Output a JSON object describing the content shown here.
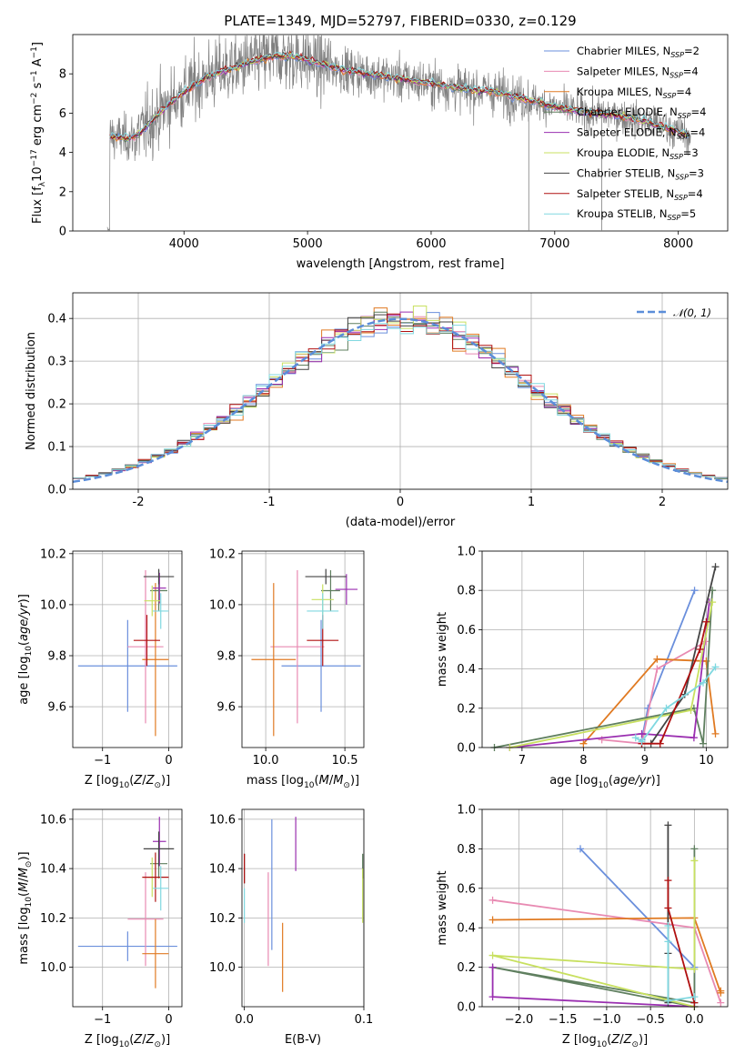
{
  "title": "PLATE=1349, MJD=52797, FIBERID=0330, z=0.129",
  "colors": {
    "Chabrier MILES": "#6a8fdc",
    "Salpeter MILES": "#e88ab2",
    "Kroupa MILES": "#e07a22",
    "Chabrier ELODIE": "#5f7f5f",
    "Salpeter ELODIE": "#9a2fb0",
    "Kroupa ELODIE": "#c8e060",
    "Chabrier STELIB": "#444444",
    "Salpeter STELIB": "#b01010",
    "Kroupa STELIB": "#80d8e0"
  },
  "chart_data": [
    {
      "id": "spectrum",
      "type": "line",
      "xlabel": "wavelength [Angstrom, rest frame]",
      "ylabel": "Flux [f_λ10^-17 erg cm^-2 s^-1 A^-1]",
      "xlim": [
        3100,
        8400
      ],
      "ylim": [
        0,
        10
      ],
      "xticks": [
        4000,
        5000,
        6000,
        7000,
        8000
      ],
      "yticks": [
        0,
        2,
        4,
        6,
        8
      ],
      "grid": false,
      "legend_position": "top-right",
      "data_color": "#808080",
      "continuum": {
        "x": [
          3380,
          3450,
          3550,
          3650,
          3750,
          3850,
          3950,
          4050,
          4150,
          4250,
          4350,
          4450,
          4550,
          4650,
          4750,
          4850,
          4950,
          5100,
          5300,
          5500,
          5700,
          5900,
          6100,
          6300,
          6500,
          6700,
          6900,
          7100,
          7300,
          7500,
          7700,
          7900,
          8100
        ],
        "y": [
          4.8,
          4.8,
          4.7,
          5.0,
          5.7,
          6.3,
          6.8,
          7.3,
          7.7,
          8.0,
          8.2,
          8.4,
          8.6,
          8.8,
          8.9,
          8.9,
          8.8,
          8.5,
          8.2,
          8.0,
          7.8,
          7.6,
          7.4,
          7.2,
          7.1,
          6.8,
          6.5,
          6.2,
          6.0,
          5.9,
          5.6,
          5.3,
          4.8
        ]
      },
      "legend": [
        {
          "prefix": "Chabrier MILES, N",
          "sub": "SSP",
          "suffix": "=2"
        },
        {
          "prefix": "Salpeter MILES, N",
          "sub": "SSP",
          "suffix": "=4"
        },
        {
          "prefix": "Kroupa MILES, N",
          "sub": "SSP",
          "suffix": "=4"
        },
        {
          "prefix": "Chabrier ELODIE, N",
          "sub": "SSP",
          "suffix": "=4"
        },
        {
          "prefix": "Salpeter ELODIE, N",
          "sub": "SSP",
          "suffix": "=4"
        },
        {
          "prefix": "Kroupa ELODIE, N",
          "sub": "SSP",
          "suffix": "=3"
        },
        {
          "prefix": "Chabrier STELIB, N",
          "sub": "SSP",
          "suffix": "=3"
        },
        {
          "prefix": "Salpeter STELIB, N",
          "sub": "SSP",
          "suffix": "=4"
        },
        {
          "prefix": "Kroupa STELIB, N",
          "sub": "SSP",
          "suffix": "=5"
        }
      ]
    },
    {
      "id": "residuals",
      "type": "line",
      "xlabel": "(data-model)/error",
      "ylabel": "Normed distribution",
      "xlim": [
        -2.5,
        2.5
      ],
      "ylim": [
        0,
        0.46
      ],
      "xticks": [
        -2,
        -1,
        0,
        1,
        2
      ],
      "yticks": [
        0.0,
        0.1,
        0.2,
        0.3,
        0.4
      ],
      "grid": true,
      "legend_position": "top-right",
      "gaussian_label": "𝒩(0, 1)",
      "gaussian_color": "#5b8dd9",
      "bin_width": 0.1
    },
    {
      "id": "age_vs_Z",
      "type": "scatter",
      "xlabel": "Z [log10(Z/Z⊙)]",
      "ylabel": "age  [log10(age/yr)]",
      "xlim": [
        -1.45,
        0.2
      ],
      "ylim": [
        9.44,
        10.21
      ],
      "xticks": [
        -1,
        0
      ],
      "yticks": [
        9.6,
        9.8,
        10.0,
        10.2
      ],
      "grid": true,
      "points": [
        {
          "m": "Chabrier MILES",
          "x": -0.62,
          "xe": 0.75,
          "y": 9.76,
          "ye": 0.18
        },
        {
          "m": "Salpeter MILES",
          "x": -0.35,
          "xe": 0.27,
          "y": 9.835,
          "ye": 0.3
        },
        {
          "m": "Kroupa MILES",
          "x": -0.2,
          "xe": 0.2,
          "y": 9.785,
          "ye": 0.3
        },
        {
          "m": "Chabrier ELODIE",
          "x": -0.15,
          "xe": 0.13,
          "y": 10.055,
          "ye": 0.08
        },
        {
          "m": "Salpeter ELODIE",
          "x": -0.14,
          "xe": 0.1,
          "y": 10.065,
          "ye": 0.06
        },
        {
          "m": "Kroupa ELODIE",
          "x": -0.25,
          "xe": 0.12,
          "y": 10.015,
          "ye": 0.06
        },
        {
          "m": "Chabrier STELIB",
          "x": -0.15,
          "xe": 0.23,
          "y": 10.11,
          "ye": 0.03
        },
        {
          "m": "Salpeter STELIB",
          "x": -0.33,
          "xe": 0.2,
          "y": 9.86,
          "ye": 0.1
        },
        {
          "m": "Kroupa STELIB",
          "x": -0.12,
          "xe": 0.12,
          "y": 9.975,
          "ye": 0.07
        }
      ]
    },
    {
      "id": "age_vs_mass",
      "type": "scatter",
      "xlabel": "mass [log10(M/M⊙)]",
      "ylabel": "",
      "xlim": [
        9.85,
        10.62
      ],
      "ylim": [
        9.44,
        10.21
      ],
      "xticks": [
        10.0,
        10.5
      ],
      "yticks": [
        9.6,
        9.8,
        10.0,
        10.2
      ],
      "grid": true,
      "points": [
        {
          "m": "Chabrier MILES",
          "x": 10.35,
          "xe": 0.25,
          "y": 9.76,
          "ye": 0.18
        },
        {
          "m": "Salpeter MILES",
          "x": 10.2,
          "xe": 0.17,
          "y": 9.835,
          "ye": 0.3
        },
        {
          "m": "Kroupa MILES",
          "x": 10.05,
          "xe": 0.14,
          "y": 9.785,
          "ye": 0.3
        },
        {
          "m": "Chabrier ELODIE",
          "x": 10.41,
          "xe": 0.06,
          "y": 10.055,
          "ye": 0.08
        },
        {
          "m": "Salpeter ELODIE",
          "x": 10.51,
          "xe": 0.07,
          "y": 10.06,
          "ye": 0.06
        },
        {
          "m": "Kroupa ELODIE",
          "x": 10.36,
          "xe": 0.07,
          "y": 10.02,
          "ye": 0.06
        },
        {
          "m": "Chabrier STELIB",
          "x": 10.38,
          "xe": 0.13,
          "y": 10.11,
          "ye": 0.03
        },
        {
          "m": "Salpeter STELIB",
          "x": 10.36,
          "xe": 0.1,
          "y": 9.86,
          "ye": 0.1
        },
        {
          "m": "Kroupa STELIB",
          "x": 10.36,
          "xe": 0.1,
          "y": 9.975,
          "ye": 0.07
        }
      ]
    },
    {
      "id": "weight_vs_age",
      "type": "line",
      "xlabel": "age  [log10(age/yr)]",
      "ylabel": "mass weight",
      "xlim": [
        6.35,
        10.35
      ],
      "ylim": [
        0,
        1.0
      ],
      "xticks": [
        7,
        8,
        9,
        10
      ],
      "yticks": [
        0.0,
        0.2,
        0.4,
        0.6,
        0.8,
        1.0
      ],
      "grid": true,
      "series": [
        {
          "m": "Chabrier MILES",
          "x": [
            9.81,
            9.05,
            8.95
          ],
          "y": [
            0.8,
            0.2,
            0.04
          ]
        },
        {
          "m": "Salpeter MILES",
          "x": [
            10.0,
            9.2,
            8.95,
            8.3
          ],
          "y": [
            0.54,
            0.4,
            0.02,
            0.04
          ]
        },
        {
          "m": "Kroupa MILES",
          "x": [
            8.0,
            9.2,
            10.0,
            10.15
          ],
          "y": [
            0.02,
            0.45,
            0.44,
            0.07
          ]
        },
        {
          "m": "Chabrier ELODIE",
          "x": [
            10.1,
            9.95,
            9.8,
            6.55
          ],
          "y": [
            0.8,
            0.02,
            0.2,
            0.0
          ]
        },
        {
          "m": "Salpeter ELODIE",
          "x": [
            10.05,
            9.8,
            8.95,
            6.8
          ],
          "y": [
            0.74,
            0.05,
            0.07,
            0.0
          ]
        },
        {
          "m": "Kroupa ELODIE",
          "x": [
            10.1,
            9.75,
            6.8
          ],
          "y": [
            0.74,
            0.19,
            0.0
          ]
        },
        {
          "m": "Chabrier STELIB",
          "x": [
            10.15,
            9.65,
            9.1
          ],
          "y": [
            0.92,
            0.27,
            0.02
          ]
        },
        {
          "m": "Salpeter STELIB",
          "x": [
            10.0,
            9.9,
            9.25,
            8.95
          ],
          "y": [
            0.64,
            0.5,
            0.02,
            0.02
          ]
        },
        {
          "m": "Kroupa STELIB",
          "x": [
            10.15,
            9.95,
            9.35,
            8.95,
            8.85
          ],
          "y": [
            0.41,
            0.33,
            0.2,
            0.03,
            0.05
          ]
        }
      ]
    },
    {
      "id": "mass_vs_Z",
      "type": "scatter",
      "xlabel": "Z [log10(Z/Z⊙)]",
      "ylabel": "mass [log10(M/M⊙)]",
      "xlim": [
        -1.45,
        0.2
      ],
      "ylim": [
        9.84,
        10.64
      ],
      "xticks": [
        -1,
        0
      ],
      "yticks": [
        10.0,
        10.2,
        10.4,
        10.6
      ],
      "grid": true,
      "points": [
        {
          "m": "Chabrier MILES",
          "x": -0.62,
          "xe": 0.75,
          "y": 10.085,
          "ye": 0.06
        },
        {
          "m": "Salpeter MILES",
          "x": -0.35,
          "xe": 0.27,
          "y": 10.195,
          "ye": 0.19
        },
        {
          "m": "Kroupa MILES",
          "x": -0.2,
          "xe": 0.2,
          "y": 10.055,
          "ye": 0.14
        },
        {
          "m": "Chabrier ELODIE",
          "x": -0.15,
          "xe": 0.13,
          "y": 10.42,
          "ye": 0.06
        },
        {
          "m": "Salpeter ELODIE",
          "x": -0.14,
          "xe": 0.1,
          "y": 10.51,
          "ye": 0.1
        },
        {
          "m": "Kroupa ELODIE",
          "x": -0.25,
          "xe": 0.12,
          "y": 10.365,
          "ye": 0.08
        },
        {
          "m": "Chabrier STELIB",
          "x": -0.15,
          "xe": 0.23,
          "y": 10.48,
          "ye": 0.07
        },
        {
          "m": "Salpeter STELIB",
          "x": -0.2,
          "xe": 0.2,
          "y": 10.365,
          "ye": 0.1
        },
        {
          "m": "Kroupa STELIB",
          "x": -0.12,
          "xe": 0.12,
          "y": 10.32,
          "ye": 0.09
        }
      ]
    },
    {
      "id": "mass_vs_EBV",
      "type": "scatter",
      "xlabel": "E(B-V)",
      "ylabel": "",
      "xlim": [
        -0.002,
        0.1
      ],
      "ylim": [
        9.84,
        10.64
      ],
      "xticks": [
        0.0,
        0.1
      ],
      "yticks": [
        10.0,
        10.2,
        10.4,
        10.6
      ],
      "grid": true,
      "points": [
        {
          "m": "Chabrier MILES",
          "x": 0.023,
          "y": 10.335,
          "ye": 0.265
        },
        {
          "m": "Salpeter MILES",
          "x": 0.02,
          "y": 10.195,
          "ye": 0.19
        },
        {
          "m": "Kroupa MILES",
          "x": 0.032,
          "y": 10.04,
          "ye": 0.14
        },
        {
          "m": "Chabrier ELODIE",
          "x": 0.099,
          "y": 10.41,
          "ye": 0.05
        },
        {
          "m": "Salpeter ELODIE",
          "x": 0.043,
          "y": 10.5,
          "ye": 0.11
        },
        {
          "m": "Kroupa ELODIE",
          "x": 0.099,
          "y": 10.29,
          "ye": 0.11
        },
        {
          "m": "Chabrier STELIB",
          "x": 0.0,
          "y": 10.4,
          "ye": 0.06
        },
        {
          "m": "Salpeter STELIB",
          "x": 0.0,
          "y": 10.4,
          "ye": 0.06
        },
        {
          "m": "Kroupa STELIB",
          "x": 0.0,
          "y": 10.25,
          "ye": 0.07
        }
      ]
    },
    {
      "id": "weight_vs_Z",
      "type": "line",
      "xlabel": "Z [log10(Z/Z⊙)]",
      "ylabel": "mass weight",
      "xlim": [
        -2.42,
        0.38
      ],
      "ylim": [
        0,
        1.0
      ],
      "xticks": [
        -2.0,
        -1.5,
        -1.0,
        -0.5,
        0.0
      ],
      "yticks": [
        0.0,
        0.2,
        0.4,
        0.6,
        0.8,
        1.0
      ],
      "grid": true,
      "series": [
        {
          "m": "Chabrier MILES",
          "x": [
            -1.3,
            0.0,
            0.0
          ],
          "y": [
            0.8,
            0.2,
            0.0
          ]
        },
        {
          "m": "Salpeter MILES",
          "x": [
            -2.3,
            0.0,
            0.3
          ],
          "y": [
            0.54,
            0.4,
            0.02
          ]
        },
        {
          "m": "Kroupa MILES",
          "x": [
            -2.3,
            0.0,
            0.3,
            0.3
          ],
          "y": [
            0.44,
            0.45,
            0.07,
            0.08
          ]
        },
        {
          "m": "Chabrier ELODIE",
          "x": [
            0.0,
            0.0,
            -2.3,
            0.0
          ],
          "y": [
            0.8,
            0.02,
            0.2,
            0.0
          ]
        },
        {
          "m": "Salpeter ELODIE",
          "x": [
            -2.3,
            -2.3,
            0.0
          ],
          "y": [
            0.2,
            0.05,
            0.0
          ]
        },
        {
          "m": "Kroupa ELODIE",
          "x": [
            0.0,
            0.0,
            -2.3,
            0.0
          ],
          "y": [
            0.74,
            0.19,
            0.26,
            0.0
          ]
        },
        {
          "m": "Chabrier STELIB",
          "x": [
            -0.3,
            -0.3,
            -0.3
          ],
          "y": [
            0.92,
            0.27,
            0.02
          ]
        },
        {
          "m": "Salpeter STELIB",
          "x": [
            -0.3,
            -0.3,
            0.0
          ],
          "y": [
            0.64,
            0.5,
            0.02
          ]
        },
        {
          "m": "Kroupa STELIB",
          "x": [
            -0.3,
            -0.3,
            -0.3,
            0.0
          ],
          "y": [
            0.41,
            0.33,
            0.03,
            0.05
          ]
        }
      ]
    }
  ]
}
